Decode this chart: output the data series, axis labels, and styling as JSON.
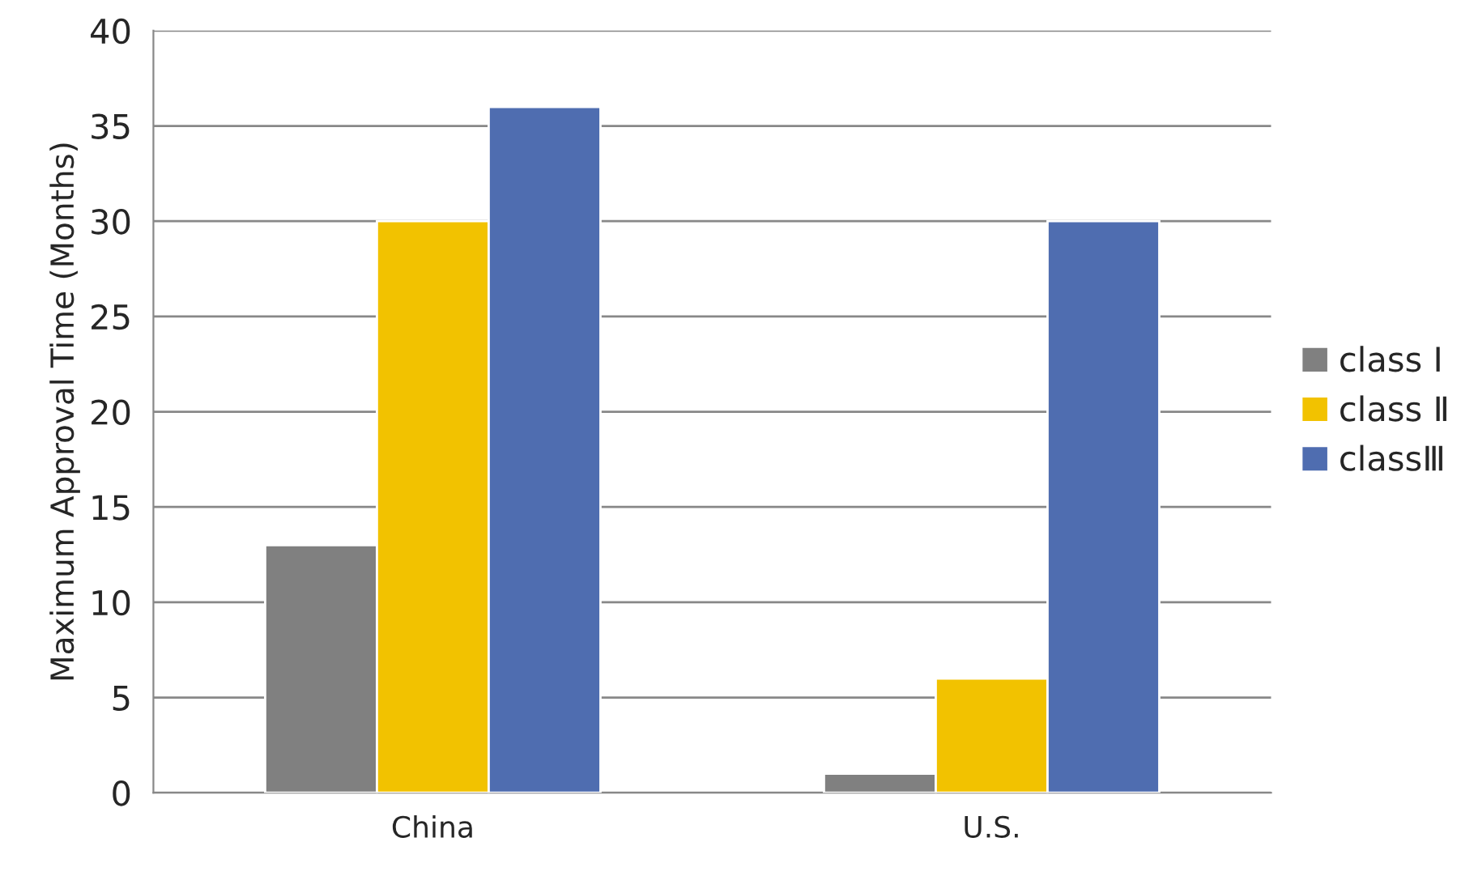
{
  "chart_data": {
    "type": "bar",
    "ylabel": "Maximum Approval Time (Months)",
    "categories": [
      "China",
      "U.S."
    ],
    "series": [
      {
        "name": "class Ⅰ",
        "color": "#808080",
        "values": [
          13,
          1
        ]
      },
      {
        "name": "class Ⅱ",
        "color": "#f2c200",
        "values": [
          30,
          6
        ]
      },
      {
        "name": "classⅢ",
        "color": "#4f6db0",
        "values": [
          36,
          30
        ]
      }
    ],
    "ylim": [
      0,
      40
    ],
    "yticks": [
      0,
      5,
      10,
      15,
      20,
      25,
      30,
      35,
      40
    ],
    "grid": "y",
    "legend": "right"
  }
}
